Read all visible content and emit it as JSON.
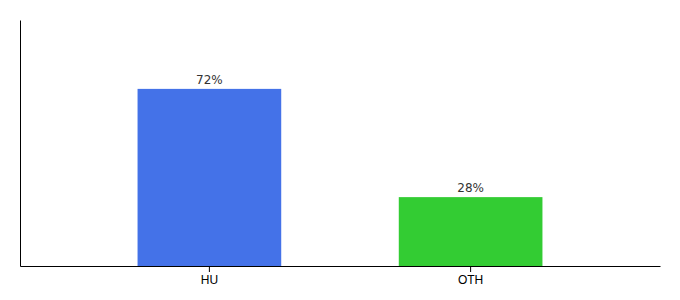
{
  "chart_data": {
    "type": "bar",
    "categories": [
      "HU",
      "OTH"
    ],
    "values": [
      72,
      28
    ],
    "colors": [
      "#4472e8",
      "#33cc33"
    ],
    "ylim": [
      0,
      100
    ],
    "grid": false,
    "tick_labels": "x",
    "data_labels": true,
    "value_labels": [
      "72%",
      "28%"
    ]
  }
}
